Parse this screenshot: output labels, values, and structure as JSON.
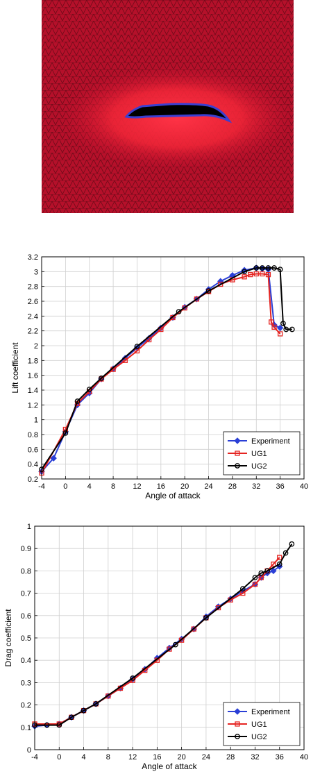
{
  "figure": {
    "mesh_colors": {
      "background": "#c8102e",
      "halo": "#ff2a3c",
      "airfoil": "#000000",
      "outline": "#3a3fd1"
    }
  },
  "chart_data": [
    {
      "type": "line",
      "xlabel": "Angle of attack",
      "ylabel": "Lift coefficient",
      "xlim": [
        -4,
        40
      ],
      "ylim": [
        0.2,
        3.2
      ],
      "xticks": [
        "-4",
        "0",
        "4",
        "8",
        "12",
        "16",
        "20",
        "24",
        "28",
        "32",
        "36",
        "40"
      ],
      "yticks": [
        "0.2",
        "0.4",
        "0.6",
        "0.8",
        "1",
        "1.2",
        "1.4",
        "1.6",
        "1.8",
        "2",
        "2.2",
        "2.4",
        "2.6",
        "2.8",
        "3",
        "3.2"
      ],
      "grid": true,
      "legend": "bottom-right",
      "series": [
        {
          "name": "Experiment",
          "color": "#2a3fd6",
          "marker": "diamond",
          "x": [
            -4,
            -2,
            0,
            2,
            4,
            6,
            8,
            10,
            12,
            14,
            16,
            18,
            20,
            22,
            24,
            26,
            28,
            30,
            32,
            33,
            34,
            35,
            36
          ],
          "y": [
            0.3,
            0.48,
            0.84,
            1.2,
            1.36,
            1.55,
            1.69,
            1.83,
            1.97,
            2.1,
            2.24,
            2.38,
            2.52,
            2.63,
            2.76,
            2.87,
            2.95,
            3.02,
            3.05,
            3.04,
            3.03,
            2.28,
            2.24
          ]
        },
        {
          "name": "UG1",
          "color": "#e52421",
          "marker": "square",
          "x": [
            -4,
            0,
            2,
            4,
            6,
            8,
            10,
            12,
            14,
            16,
            18,
            20,
            22,
            24,
            26,
            28,
            30,
            31,
            32,
            33,
            34,
            34.5,
            35,
            36
          ],
          "y": [
            0.28,
            0.87,
            1.22,
            1.38,
            1.55,
            1.68,
            1.8,
            1.93,
            2.08,
            2.22,
            2.38,
            2.51,
            2.63,
            2.73,
            2.83,
            2.89,
            2.93,
            2.96,
            2.97,
            2.97,
            2.96,
            2.32,
            2.25,
            2.16
          ]
        },
        {
          "name": "UG2",
          "color": "#000000",
          "marker": "circle",
          "x": [
            -4,
            0,
            2,
            4,
            6,
            12,
            19,
            24,
            30,
            32,
            33,
            34,
            35,
            36,
            36.5,
            37,
            38
          ],
          "y": [
            0.33,
            0.82,
            1.25,
            1.41,
            1.56,
            1.99,
            2.46,
            2.74,
            3.0,
            3.05,
            3.05,
            3.05,
            3.05,
            3.03,
            2.3,
            2.22,
            2.22
          ]
        }
      ]
    },
    {
      "type": "line",
      "xlabel": "Angle of attack",
      "ylabel": "Drag coefficient",
      "xlim": [
        -4,
        40
      ],
      "ylim": [
        0,
        1
      ],
      "xticks": [
        "-4",
        "0",
        "4",
        "8",
        "12",
        "16",
        "20",
        "24",
        "28",
        "32",
        "36",
        "40"
      ],
      "yticks": [
        "0",
        "0.1",
        "0.2",
        "0.3",
        "0.4",
        "0.5",
        "0.6",
        "0.7",
        "0.8",
        "0.9",
        "1"
      ],
      "grid": true,
      "legend": "bottom-right",
      "series": [
        {
          "name": "Experiment",
          "color": "#2a3fd6",
          "marker": "diamond",
          "x": [
            -4,
            -2,
            0,
            2,
            4,
            6,
            8,
            10,
            12,
            14,
            16,
            18,
            20,
            22,
            24,
            26,
            28,
            30,
            32,
            33,
            34,
            35,
            36
          ],
          "y": [
            0.105,
            0.11,
            0.115,
            0.145,
            0.175,
            0.205,
            0.24,
            0.275,
            0.315,
            0.36,
            0.41,
            0.455,
            0.495,
            0.54,
            0.595,
            0.64,
            0.675,
            0.71,
            0.74,
            0.77,
            0.79,
            0.8,
            0.82
          ]
        },
        {
          "name": "UG1",
          "color": "#e52421",
          "marker": "square",
          "x": [
            -4,
            0,
            2,
            4,
            6,
            8,
            10,
            12,
            14,
            16,
            18,
            20,
            22,
            24,
            26,
            28,
            30,
            32,
            33,
            34,
            35,
            36
          ],
          "y": [
            0.115,
            0.115,
            0.145,
            0.175,
            0.205,
            0.24,
            0.275,
            0.31,
            0.355,
            0.4,
            0.45,
            0.49,
            0.54,
            0.59,
            0.635,
            0.67,
            0.7,
            0.74,
            0.77,
            0.8,
            0.83,
            0.86
          ]
        },
        {
          "name": "UG2",
          "color": "#000000",
          "marker": "circle",
          "x": [
            -4,
            -2,
            0,
            2,
            4,
            6,
            12,
            19,
            24,
            30,
            32,
            33,
            34,
            36,
            37,
            38
          ],
          "y": [
            0.11,
            0.11,
            0.11,
            0.145,
            0.175,
            0.205,
            0.32,
            0.47,
            0.59,
            0.72,
            0.77,
            0.79,
            0.8,
            0.83,
            0.88,
            0.92
          ]
        }
      ]
    }
  ]
}
